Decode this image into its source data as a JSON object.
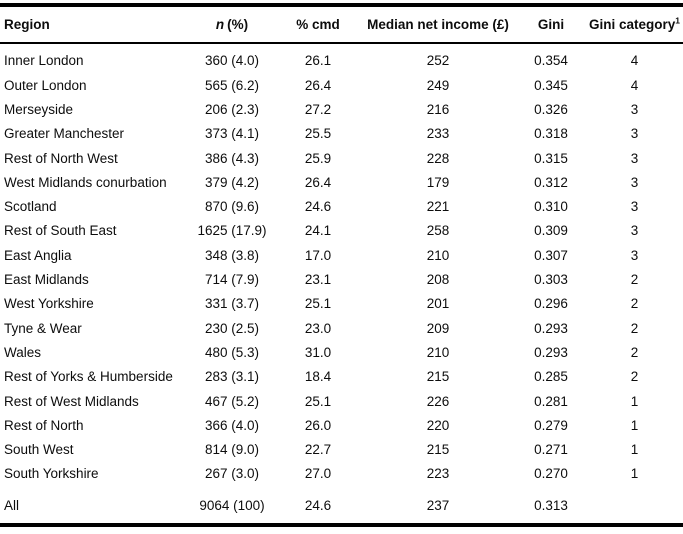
{
  "table": {
    "header": {
      "region": "Region",
      "n_pct_prefix_italic": "n",
      "n_pct_suffix": "(%)",
      "pct_cmd": "% cmd",
      "median_net_income": "Median net income (£)",
      "gini": "Gini",
      "gini_category": "Gini category",
      "gini_category_footnote_marker": "1"
    },
    "rows": [
      {
        "region": "Inner London",
        "n_pct": "360 (4.0)",
        "pct_cmd": "26.1",
        "median_net_income": "252",
        "gini": "0.354",
        "gini_category": "4"
      },
      {
        "region": "Outer London",
        "n_pct": "565 (6.2)",
        "pct_cmd": "26.4",
        "median_net_income": "249",
        "gini": "0.345",
        "gini_category": "4"
      },
      {
        "region": "Merseyside",
        "n_pct": "206 (2.3)",
        "pct_cmd": "27.2",
        "median_net_income": "216",
        "gini": "0.326",
        "gini_category": "3"
      },
      {
        "region": "Greater Manchester",
        "n_pct": "373 (4.1)",
        "pct_cmd": "25.5",
        "median_net_income": "233",
        "gini": "0.318",
        "gini_category": "3"
      },
      {
        "region": "Rest of North West",
        "n_pct": "386 (4.3)",
        "pct_cmd": "25.9",
        "median_net_income": "228",
        "gini": "0.315",
        "gini_category": "3"
      },
      {
        "region": "West Midlands conurbation",
        "n_pct": "379 (4.2)",
        "pct_cmd": "26.4",
        "median_net_income": "179",
        "gini": "0.312",
        "gini_category": "3"
      },
      {
        "region": "Scotland",
        "n_pct": "870 (9.6)",
        "pct_cmd": "24.6",
        "median_net_income": "221",
        "gini": "0.310",
        "gini_category": "3"
      },
      {
        "region": "Rest of South East",
        "n_pct": "1625 (17.9)",
        "pct_cmd": "24.1",
        "median_net_income": "258",
        "gini": "0.309",
        "gini_category": "3"
      },
      {
        "region": "East Anglia",
        "n_pct": "348 (3.8)",
        "pct_cmd": "17.0",
        "median_net_income": "210",
        "gini": "0.307",
        "gini_category": "3"
      },
      {
        "region": "East Midlands",
        "n_pct": "714 (7.9)",
        "pct_cmd": "23.1",
        "median_net_income": "208",
        "gini": "0.303",
        "gini_category": "2"
      },
      {
        "region": "West Yorkshire",
        "n_pct": "331 (3.7)",
        "pct_cmd": "25.1",
        "median_net_income": "201",
        "gini": "0.296",
        "gini_category": "2"
      },
      {
        "region": "Tyne & Wear",
        "n_pct": "230 (2.5)",
        "pct_cmd": "23.0",
        "median_net_income": "209",
        "gini": "0.293",
        "gini_category": "2"
      },
      {
        "region": "Wales",
        "n_pct": "480 (5.3)",
        "pct_cmd": "31.0",
        "median_net_income": "210",
        "gini": "0.293",
        "gini_category": "2"
      },
      {
        "region": "Rest of Yorks & Humberside",
        "n_pct": "283 (3.1)",
        "pct_cmd": "18.4",
        "median_net_income": "215",
        "gini": "0.285",
        "gini_category": "2"
      },
      {
        "region": "Rest of West Midlands",
        "n_pct": "467 (5.2)",
        "pct_cmd": "25.1",
        "median_net_income": "226",
        "gini": "0.281",
        "gini_category": "1"
      },
      {
        "region": "Rest of North",
        "n_pct": "366 (4.0)",
        "pct_cmd": "26.0",
        "median_net_income": "220",
        "gini": "0.279",
        "gini_category": "1"
      },
      {
        "region": "South West",
        "n_pct": "814 (9.0)",
        "pct_cmd": "22.7",
        "median_net_income": "215",
        "gini": "0.271",
        "gini_category": "1"
      },
      {
        "region": "South Yorkshire",
        "n_pct": "267 (3.0)",
        "pct_cmd": "27.0",
        "median_net_income": "223",
        "gini": "0.270",
        "gini_category": "1"
      }
    ],
    "total_row": {
      "region": "All",
      "n_pct": "9064 (100)",
      "pct_cmd": "24.6",
      "median_net_income": "237",
      "gini": "0.313",
      "gini_category": ""
    }
  },
  "colors": {
    "background": "#ffffff",
    "text": "#0d0d0d",
    "rule": "#000000"
  }
}
